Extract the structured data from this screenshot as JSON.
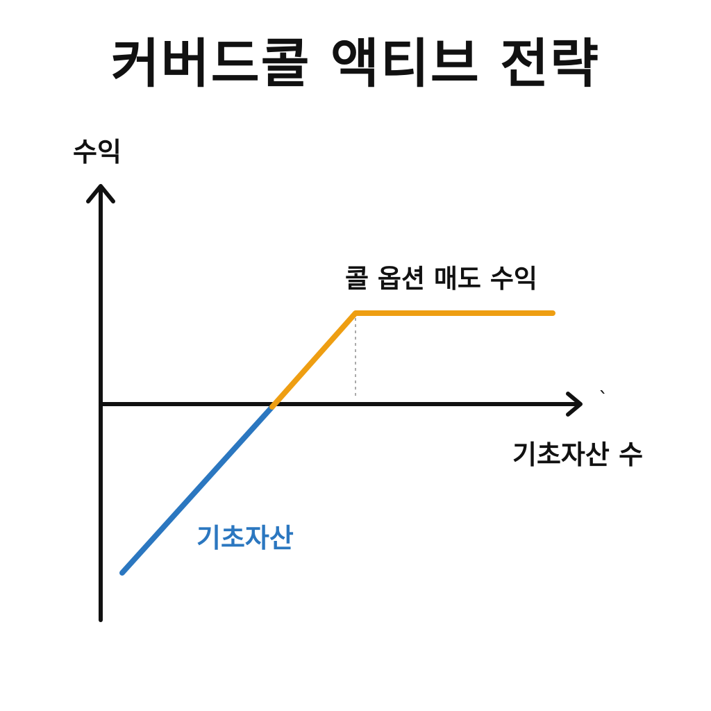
{
  "title": "커버드콜 액티브 전략",
  "axes": {
    "y_label": "수익",
    "x_label": "기초자산 수",
    "stray_mark": "`"
  },
  "lines": {
    "underlying": {
      "label": "기초자산",
      "color": "#2B77C0"
    },
    "call_premium": {
      "label": "콜 옵션 매도 수익",
      "color": "#EE9E12"
    }
  },
  "colors": {
    "axis": "#111111",
    "dotted_guide": "#AAAAAA",
    "text": "#111111"
  }
}
